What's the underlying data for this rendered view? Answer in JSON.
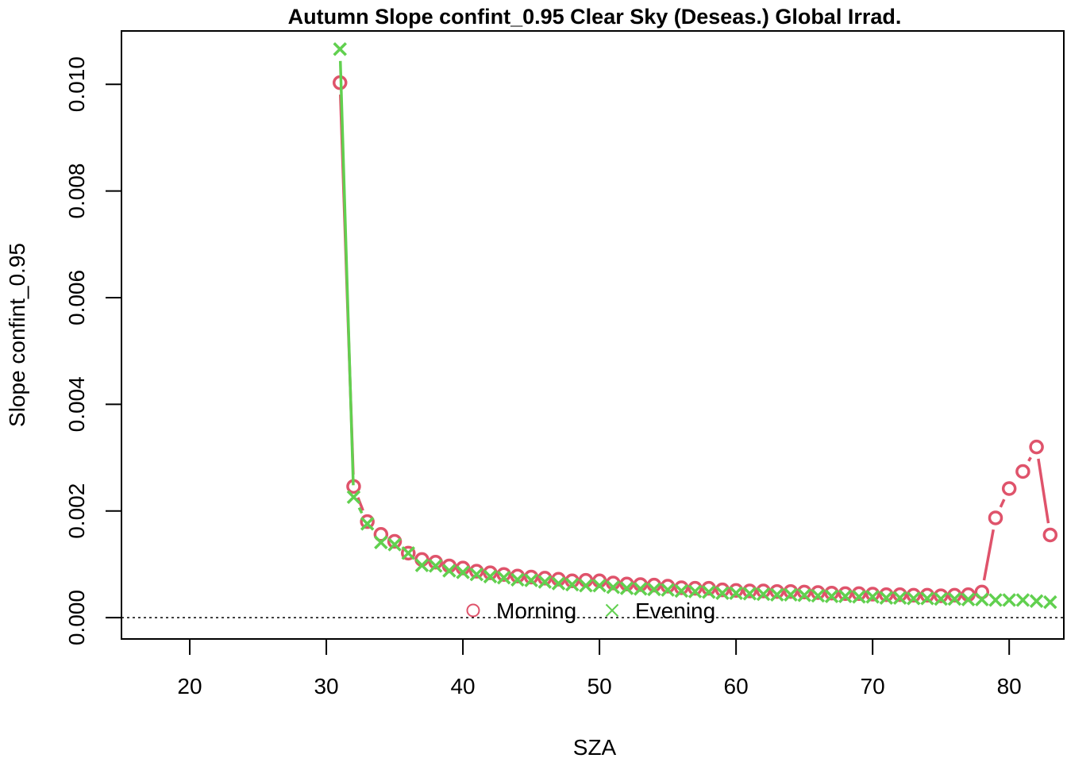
{
  "chart_data": {
    "type": "line",
    "title": "Autumn Slope confint_0.95 Clear Sky (Deseas.) Global Irrad.",
    "xlabel": "SZA",
    "ylabel": "Slope confint_0.95",
    "xlim": [
      15,
      84
    ],
    "ylim": [
      -0.0004,
      0.011
    ],
    "x_ticks": [
      "20",
      "30",
      "40",
      "50",
      "60",
      "70",
      "80"
    ],
    "y_ticks": [
      "0.000",
      "0.002",
      "0.004",
      "0.006",
      "0.008",
      "0.010"
    ],
    "reference_line": {
      "y": 0,
      "style": "dotted"
    },
    "legend": {
      "position": "bottom-center",
      "entries": [
        "Morning",
        "Evening"
      ]
    },
    "series": [
      {
        "name": "Morning",
        "color": "#DF536B",
        "marker": "circle",
        "x": [
          31,
          32,
          33,
          34,
          35,
          36,
          37,
          38,
          39,
          40,
          41,
          42,
          43,
          44,
          45,
          46,
          47,
          48,
          49,
          50,
          51,
          52,
          53,
          54,
          55,
          56,
          57,
          58,
          59,
          60,
          61,
          62,
          63,
          64,
          65,
          66,
          67,
          68,
          69,
          70,
          71,
          72,
          73,
          74,
          75,
          76,
          77,
          78,
          79,
          80,
          81,
          82,
          83
        ],
        "values": [
          0.01003,
          0.00246,
          0.0018,
          0.00156,
          0.00143,
          0.00121,
          0.00109,
          0.00104,
          0.00097,
          0.00093,
          0.00087,
          0.00084,
          0.00081,
          0.00078,
          0.00076,
          0.00074,
          0.00072,
          0.00069,
          0.0007,
          0.00069,
          0.00065,
          0.00063,
          0.00062,
          0.00061,
          0.00059,
          0.00056,
          0.00055,
          0.00055,
          0.00052,
          0.00051,
          0.0005,
          0.0005,
          0.00049,
          0.00049,
          0.00048,
          0.00047,
          0.00046,
          0.00045,
          0.00045,
          0.00044,
          0.00043,
          0.00043,
          0.00042,
          0.00042,
          0.00041,
          0.00042,
          0.00043,
          0.00048,
          0.00187,
          0.00242,
          0.00274,
          0.0032,
          0.00155
        ]
      },
      {
        "name": "Evening",
        "color": "#61D04F",
        "marker": "cross",
        "x": [
          31,
          32,
          33,
          34,
          35,
          36,
          37,
          38,
          39,
          40,
          41,
          42,
          43,
          44,
          45,
          46,
          47,
          48,
          49,
          50,
          51,
          52,
          53,
          54,
          55,
          56,
          57,
          58,
          59,
          60,
          61,
          62,
          63,
          64,
          65,
          66,
          67,
          68,
          69,
          70,
          71,
          72,
          73,
          74,
          75,
          76,
          77,
          78,
          79,
          80,
          81,
          82,
          83
        ],
        "values": [
          0.01066,
          0.00226,
          0.00176,
          0.00141,
          0.00137,
          0.00121,
          0.00098,
          0.00097,
          0.00088,
          0.00085,
          0.00081,
          0.00077,
          0.00075,
          0.00071,
          0.0007,
          0.00067,
          0.00064,
          0.00062,
          0.0006,
          0.0006,
          0.00057,
          0.00055,
          0.00054,
          0.00053,
          0.00052,
          0.0005,
          0.00049,
          0.00048,
          0.00046,
          0.00046,
          0.00045,
          0.00044,
          0.00043,
          0.00043,
          0.00042,
          0.00041,
          0.0004,
          0.0004,
          0.00039,
          0.00039,
          0.00037,
          0.00037,
          0.00036,
          0.00036,
          0.00035,
          0.00035,
          0.00034,
          0.00034,
          0.00033,
          0.00033,
          0.00033,
          0.00031,
          0.00029
        ]
      }
    ]
  }
}
